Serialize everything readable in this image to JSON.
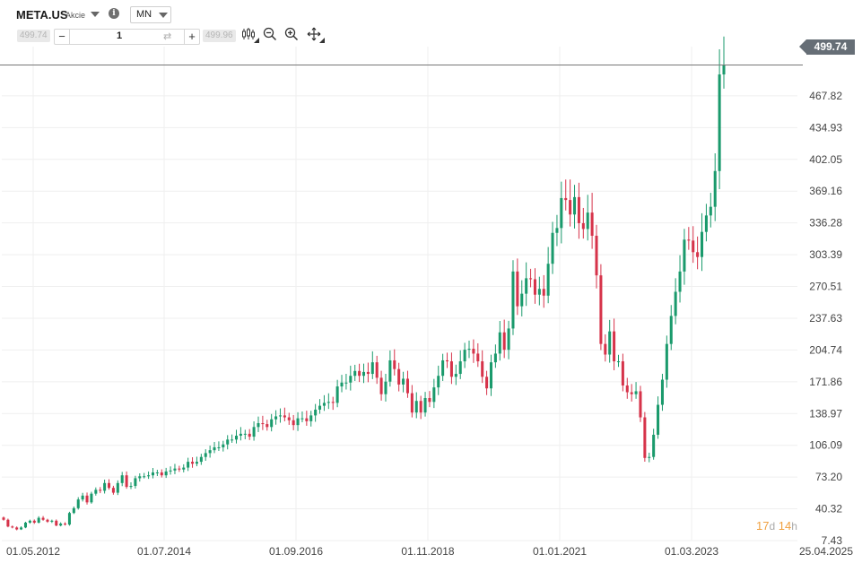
{
  "header": {
    "symbol": "META.US",
    "symbol_type": "Akcie",
    "timeframe": "MN"
  },
  "order": {
    "sell_price": "499.74",
    "buy_price": "499.96",
    "minus": "−",
    "quantity": "1",
    "swap_glyph": "⇄",
    "plus": "+"
  },
  "toolbar": {
    "icons": [
      "candlestick-type-icon",
      "zoom-out-icon",
      "zoom-in-icon",
      "crosshair-move-icon"
    ]
  },
  "price_tag": "499.74",
  "countdown": {
    "days": "17",
    "d_unit": "d",
    "hours": "14",
    "h_unit": "h"
  },
  "colors": {
    "up": "#1a9a6c",
    "down": "#d6334a",
    "grid": "#efefef",
    "price_line": "#777777"
  },
  "chart_data": {
    "type": "candlestick",
    "y_ticks": [
      "467.82",
      "434.93",
      "402.05",
      "369.16",
      "336.28",
      "303.39",
      "270.51",
      "237.63",
      "204.74",
      "171.86",
      "138.97",
      "106.09",
      "73.20",
      "40.32",
      "7.43"
    ],
    "x_ticks": [
      "01.05.2012",
      "01.07.2014",
      "01.09.2016",
      "01.11.2018",
      "01.01.2021",
      "01.03.2023",
      "25.04.2025"
    ],
    "ylim": [
      7.43,
      520
    ],
    "last_price": 499.74,
    "closes": [
      29,
      22,
      21,
      19,
      21,
      26,
      28,
      26,
      31,
      29,
      27,
      28,
      23,
      25,
      24,
      36,
      41,
      50,
      54,
      47,
      56,
      60,
      59,
      67,
      62,
      57,
      67,
      75,
      63,
      64,
      72,
      74,
      74,
      75,
      78,
      78,
      75,
      79,
      80,
      82,
      81,
      83,
      89,
      87,
      89,
      94,
      98,
      101,
      104,
      104,
      107,
      112,
      112,
      116,
      118,
      118,
      115,
      125,
      129,
      128,
      125,
      133,
      136,
      137,
      135,
      132,
      127,
      134,
      134,
      131,
      137,
      143,
      147,
      150,
      151,
      150,
      167,
      171,
      171,
      178,
      183,
      178,
      182,
      180,
      192,
      176,
      159,
      172,
      194,
      185,
      169,
      175,
      160,
      140,
      152,
      140,
      155,
      151,
      166,
      178,
      194,
      193,
      177,
      180,
      193,
      205,
      206,
      201,
      193,
      177,
      165,
      192,
      201,
      223,
      205,
      227,
      286,
      250,
      263,
      279,
      278,
      262,
      268,
      261,
      294,
      326,
      331,
      362,
      360,
      345,
      363,
      336,
      330,
      347,
      323,
      282,
      211,
      200,
      224,
      193,
      193,
      168,
      161,
      159,
      162,
      135,
      93,
      94,
      117,
      148,
      174,
      211,
      240,
      265,
      286,
      319,
      318,
      306,
      301,
      327,
      344,
      353,
      390,
      490,
      499.74
    ]
  }
}
